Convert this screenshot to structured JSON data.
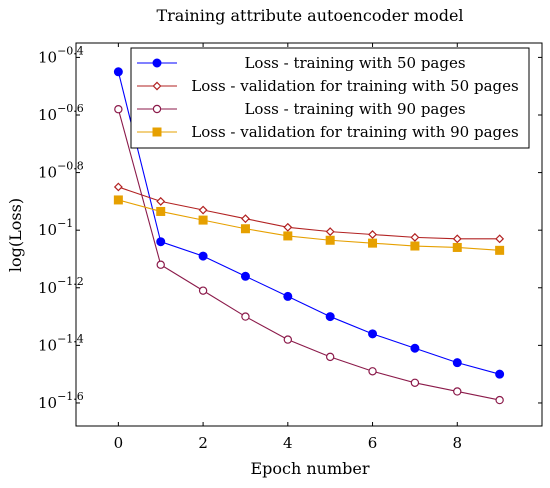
{
  "chart_data": {
    "type": "line",
    "title": "Training attribute autoencoder model",
    "xlabel": "Epoch number",
    "ylabel": "log(Loss)",
    "xlim": [
      -1,
      10
    ],
    "ylim_log10": [
      -1.68,
      -0.35
    ],
    "y_scale": "log",
    "x_ticks": [
      0,
      2,
      4,
      6,
      8
    ],
    "y_ticks": [
      {
        "value": -0.4,
        "base": "10",
        "exp": "−0.4"
      },
      {
        "value": -0.6,
        "base": "10",
        "exp": "−0.6"
      },
      {
        "value": -0.8,
        "base": "10",
        "exp": "−0.8"
      },
      {
        "value": -1.0,
        "base": "10",
        "exp": "−1"
      },
      {
        "value": -1.2,
        "base": "10",
        "exp": "−1.2"
      },
      {
        "value": -1.4,
        "base": "10",
        "exp": "−1.4"
      },
      {
        "value": -1.6,
        "base": "10",
        "exp": "−1.6"
      }
    ],
    "legend_position": "top-right",
    "x": [
      0,
      1,
      2,
      3,
      4,
      5,
      6,
      7,
      8,
      9
    ],
    "series": [
      {
        "name": "Loss - training with 50 pages",
        "color": "#0000ff",
        "marker": "circle-filled",
        "log10_values": [
          -0.45,
          -1.04,
          -1.09,
          -1.16,
          -1.23,
          -1.3,
          -1.36,
          -1.41,
          -1.46,
          -1.5
        ]
      },
      {
        "name": "Loss - validation for training with 50 pages",
        "color": "#b22222",
        "marker": "diamond-open",
        "log10_values": [
          -0.85,
          -0.9,
          -0.93,
          -0.96,
          -0.99,
          -1.005,
          -1.015,
          -1.025,
          -1.03,
          -1.03
        ]
      },
      {
        "name": "Loss - training with 90 pages",
        "color": "#8b1a4a",
        "marker": "circle-open",
        "log10_values": [
          -0.58,
          -1.12,
          -1.21,
          -1.3,
          -1.38,
          -1.44,
          -1.49,
          -1.53,
          -1.56,
          -1.59
        ]
      },
      {
        "name": "Loss - validation for training with 90 pages",
        "color": "#e6a000",
        "marker": "square-filled",
        "log10_values": [
          -0.895,
          -0.935,
          -0.965,
          -0.995,
          -1.02,
          -1.035,
          -1.045,
          -1.055,
          -1.06,
          -1.07
        ]
      }
    ]
  }
}
